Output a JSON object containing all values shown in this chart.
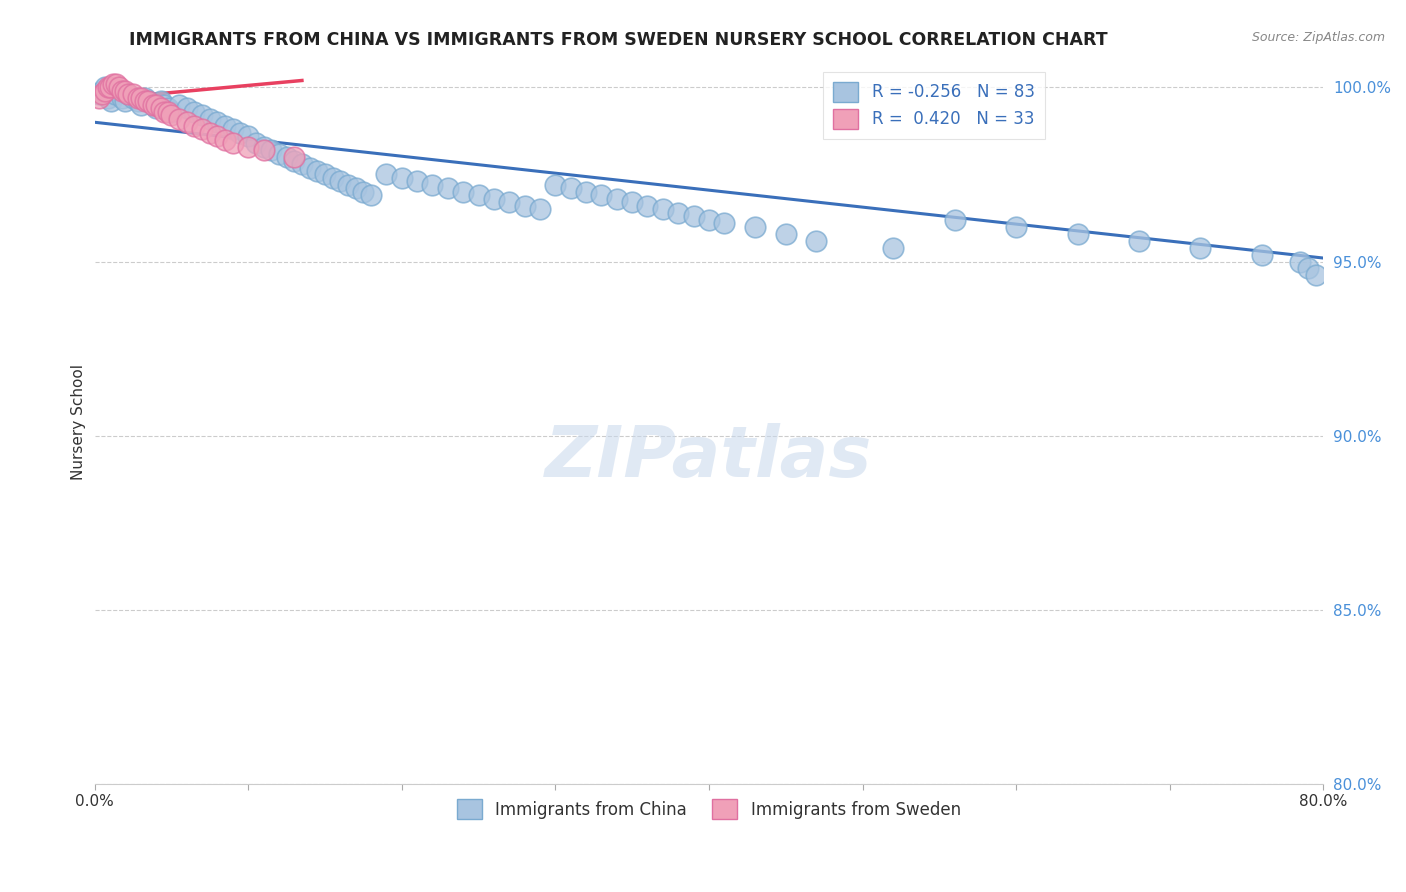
{
  "title": "IMMIGRANTS FROM CHINA VS IMMIGRANTS FROM SWEDEN NURSERY SCHOOL CORRELATION CHART",
  "source_text": "Source: ZipAtlas.com",
  "ylabel": "Nursery School",
  "legend_china": "Immigrants from China",
  "legend_sweden": "Immigrants from Sweden",
  "r_china": -0.256,
  "n_china": 83,
  "r_sweden": 0.42,
  "n_sweden": 33,
  "x_min": 0.0,
  "x_max": 0.8,
  "y_min": 0.8,
  "y_max": 1.008,
  "yticks": [
    0.8,
    0.85,
    0.9,
    0.95,
    1.0
  ],
  "ytick_labels": [
    "80.0%",
    "85.0%",
    "90.0%",
    "95.0%",
    "100.0%"
  ],
  "xticks": [
    0.0,
    0.1,
    0.2,
    0.3,
    0.4,
    0.5,
    0.6,
    0.7,
    0.8
  ],
  "xtick_labels": [
    "0.0%",
    "",
    "",
    "",
    "",
    "",
    "",
    "",
    "80.0%"
  ],
  "blue_color": "#a8c4e0",
  "blue_edge_color": "#7aaad0",
  "blue_line_color": "#3a6fba",
  "pink_color": "#f0a0b8",
  "pink_edge_color": "#e070a0",
  "pink_line_color": "#e84060",
  "watermark": "ZIPatlas",
  "china_scatter_x": [
    0.003,
    0.005,
    0.007,
    0.009,
    0.011,
    0.013,
    0.015,
    0.018,
    0.02,
    0.022,
    0.025,
    0.028,
    0.03,
    0.033,
    0.035,
    0.038,
    0.04,
    0.043,
    0.045,
    0.048,
    0.05,
    0.055,
    0.06,
    0.065,
    0.07,
    0.075,
    0.08,
    0.085,
    0.09,
    0.095,
    0.1,
    0.105,
    0.11,
    0.115,
    0.12,
    0.125,
    0.13,
    0.135,
    0.14,
    0.145,
    0.15,
    0.155,
    0.16,
    0.165,
    0.17,
    0.175,
    0.18,
    0.19,
    0.2,
    0.21,
    0.22,
    0.23,
    0.24,
    0.25,
    0.26,
    0.27,
    0.28,
    0.29,
    0.3,
    0.31,
    0.32,
    0.33,
    0.34,
    0.35,
    0.36,
    0.37,
    0.38,
    0.39,
    0.4,
    0.41,
    0.43,
    0.45,
    0.47,
    0.52,
    0.56,
    0.6,
    0.64,
    0.68,
    0.72,
    0.76,
    0.785,
    0.79,
    0.795
  ],
  "china_scatter_y": [
    0.998,
    0.999,
    1.0,
    0.997,
    0.996,
    0.998,
    0.999,
    0.997,
    0.996,
    0.998,
    0.997,
    0.996,
    0.995,
    0.997,
    0.996,
    0.995,
    0.994,
    0.996,
    0.995,
    0.994,
    0.993,
    0.995,
    0.994,
    0.993,
    0.992,
    0.991,
    0.99,
    0.989,
    0.988,
    0.987,
    0.986,
    0.984,
    0.983,
    0.982,
    0.981,
    0.98,
    0.979,
    0.978,
    0.977,
    0.976,
    0.975,
    0.974,
    0.973,
    0.972,
    0.971,
    0.97,
    0.969,
    0.975,
    0.974,
    0.973,
    0.972,
    0.971,
    0.97,
    0.969,
    0.968,
    0.967,
    0.966,
    0.965,
    0.972,
    0.971,
    0.97,
    0.969,
    0.968,
    0.967,
    0.966,
    0.965,
    0.964,
    0.963,
    0.962,
    0.961,
    0.96,
    0.958,
    0.956,
    0.954,
    0.962,
    0.96,
    0.958,
    0.956,
    0.954,
    0.952,
    0.95,
    0.948,
    0.946
  ],
  "sweden_scatter_x": [
    0.003,
    0.005,
    0.007,
    0.009,
    0.01,
    0.012,
    0.014,
    0.016,
    0.018,
    0.02,
    0.022,
    0.025,
    0.028,
    0.03,
    0.033,
    0.035,
    0.038,
    0.04,
    0.043,
    0.045,
    0.048,
    0.05,
    0.055,
    0.06,
    0.065,
    0.07,
    0.075,
    0.08,
    0.085,
    0.09,
    0.1,
    0.11,
    0.13
  ],
  "sweden_scatter_y": [
    0.997,
    0.998,
    0.999,
    1.0,
    1.0,
    1.001,
    1.001,
    1.0,
    0.999,
    0.999,
    0.998,
    0.998,
    0.997,
    0.997,
    0.996,
    0.996,
    0.995,
    0.995,
    0.994,
    0.993,
    0.993,
    0.992,
    0.991,
    0.99,
    0.989,
    0.988,
    0.987,
    0.986,
    0.985,
    0.984,
    0.983,
    0.982,
    0.98
  ],
  "china_line_x": [
    0.0,
    0.8
  ],
  "china_line_y": [
    0.99,
    0.951
  ],
  "sweden_line_x": [
    0.0,
    0.135
  ],
  "sweden_line_y": [
    0.9965,
    1.002
  ]
}
